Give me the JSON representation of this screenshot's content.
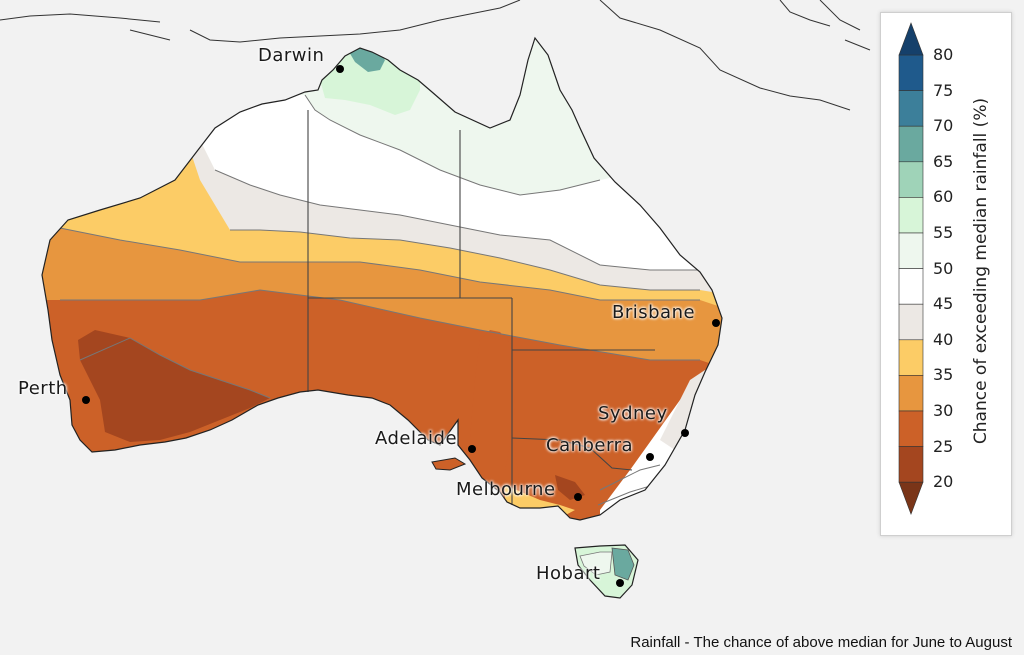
{
  "caption": "Rainfall - The chance of above median for June to August",
  "legend": {
    "title": "Chance of exceeding median rainfall (%)",
    "ticks": [
      "80",
      "75",
      "70",
      "65",
      "60",
      "55",
      "50",
      "45",
      "40",
      "35",
      "30",
      "25",
      "20"
    ],
    "bins": [
      {
        "range": "75-80",
        "color": "#1f5a8c"
      },
      {
        "range": "70-75",
        "color": "#3c7f9a"
      },
      {
        "range": "65-70",
        "color": "#6aa99f"
      },
      {
        "range": "60-65",
        "color": "#9fd3b8"
      },
      {
        "range": "55-60",
        "color": "#d7f5d8"
      },
      {
        "range": "50-55",
        "color": "#eef7ee"
      },
      {
        "range": "45-50",
        "color": "#ffffff"
      },
      {
        "range": "40-45",
        "color": "#ece8e4"
      },
      {
        "range": "35-40",
        "color": "#fccc66"
      },
      {
        "range": "30-35",
        "color": "#e7963f"
      },
      {
        "range": "25-30",
        "color": "#cc6128"
      },
      {
        "range": "20-25",
        "color": "#a4461f"
      }
    ],
    "under_color": "#7a3518",
    "over_color": "#15406b"
  },
  "cities": [
    {
      "name": "Darwin"
    },
    {
      "name": "Brisbane"
    },
    {
      "name": "Perth"
    },
    {
      "name": "Sydney"
    },
    {
      "name": "Adelaide"
    },
    {
      "name": "Canberra"
    },
    {
      "name": "Melbourne"
    },
    {
      "name": "Hobart"
    }
  ]
}
